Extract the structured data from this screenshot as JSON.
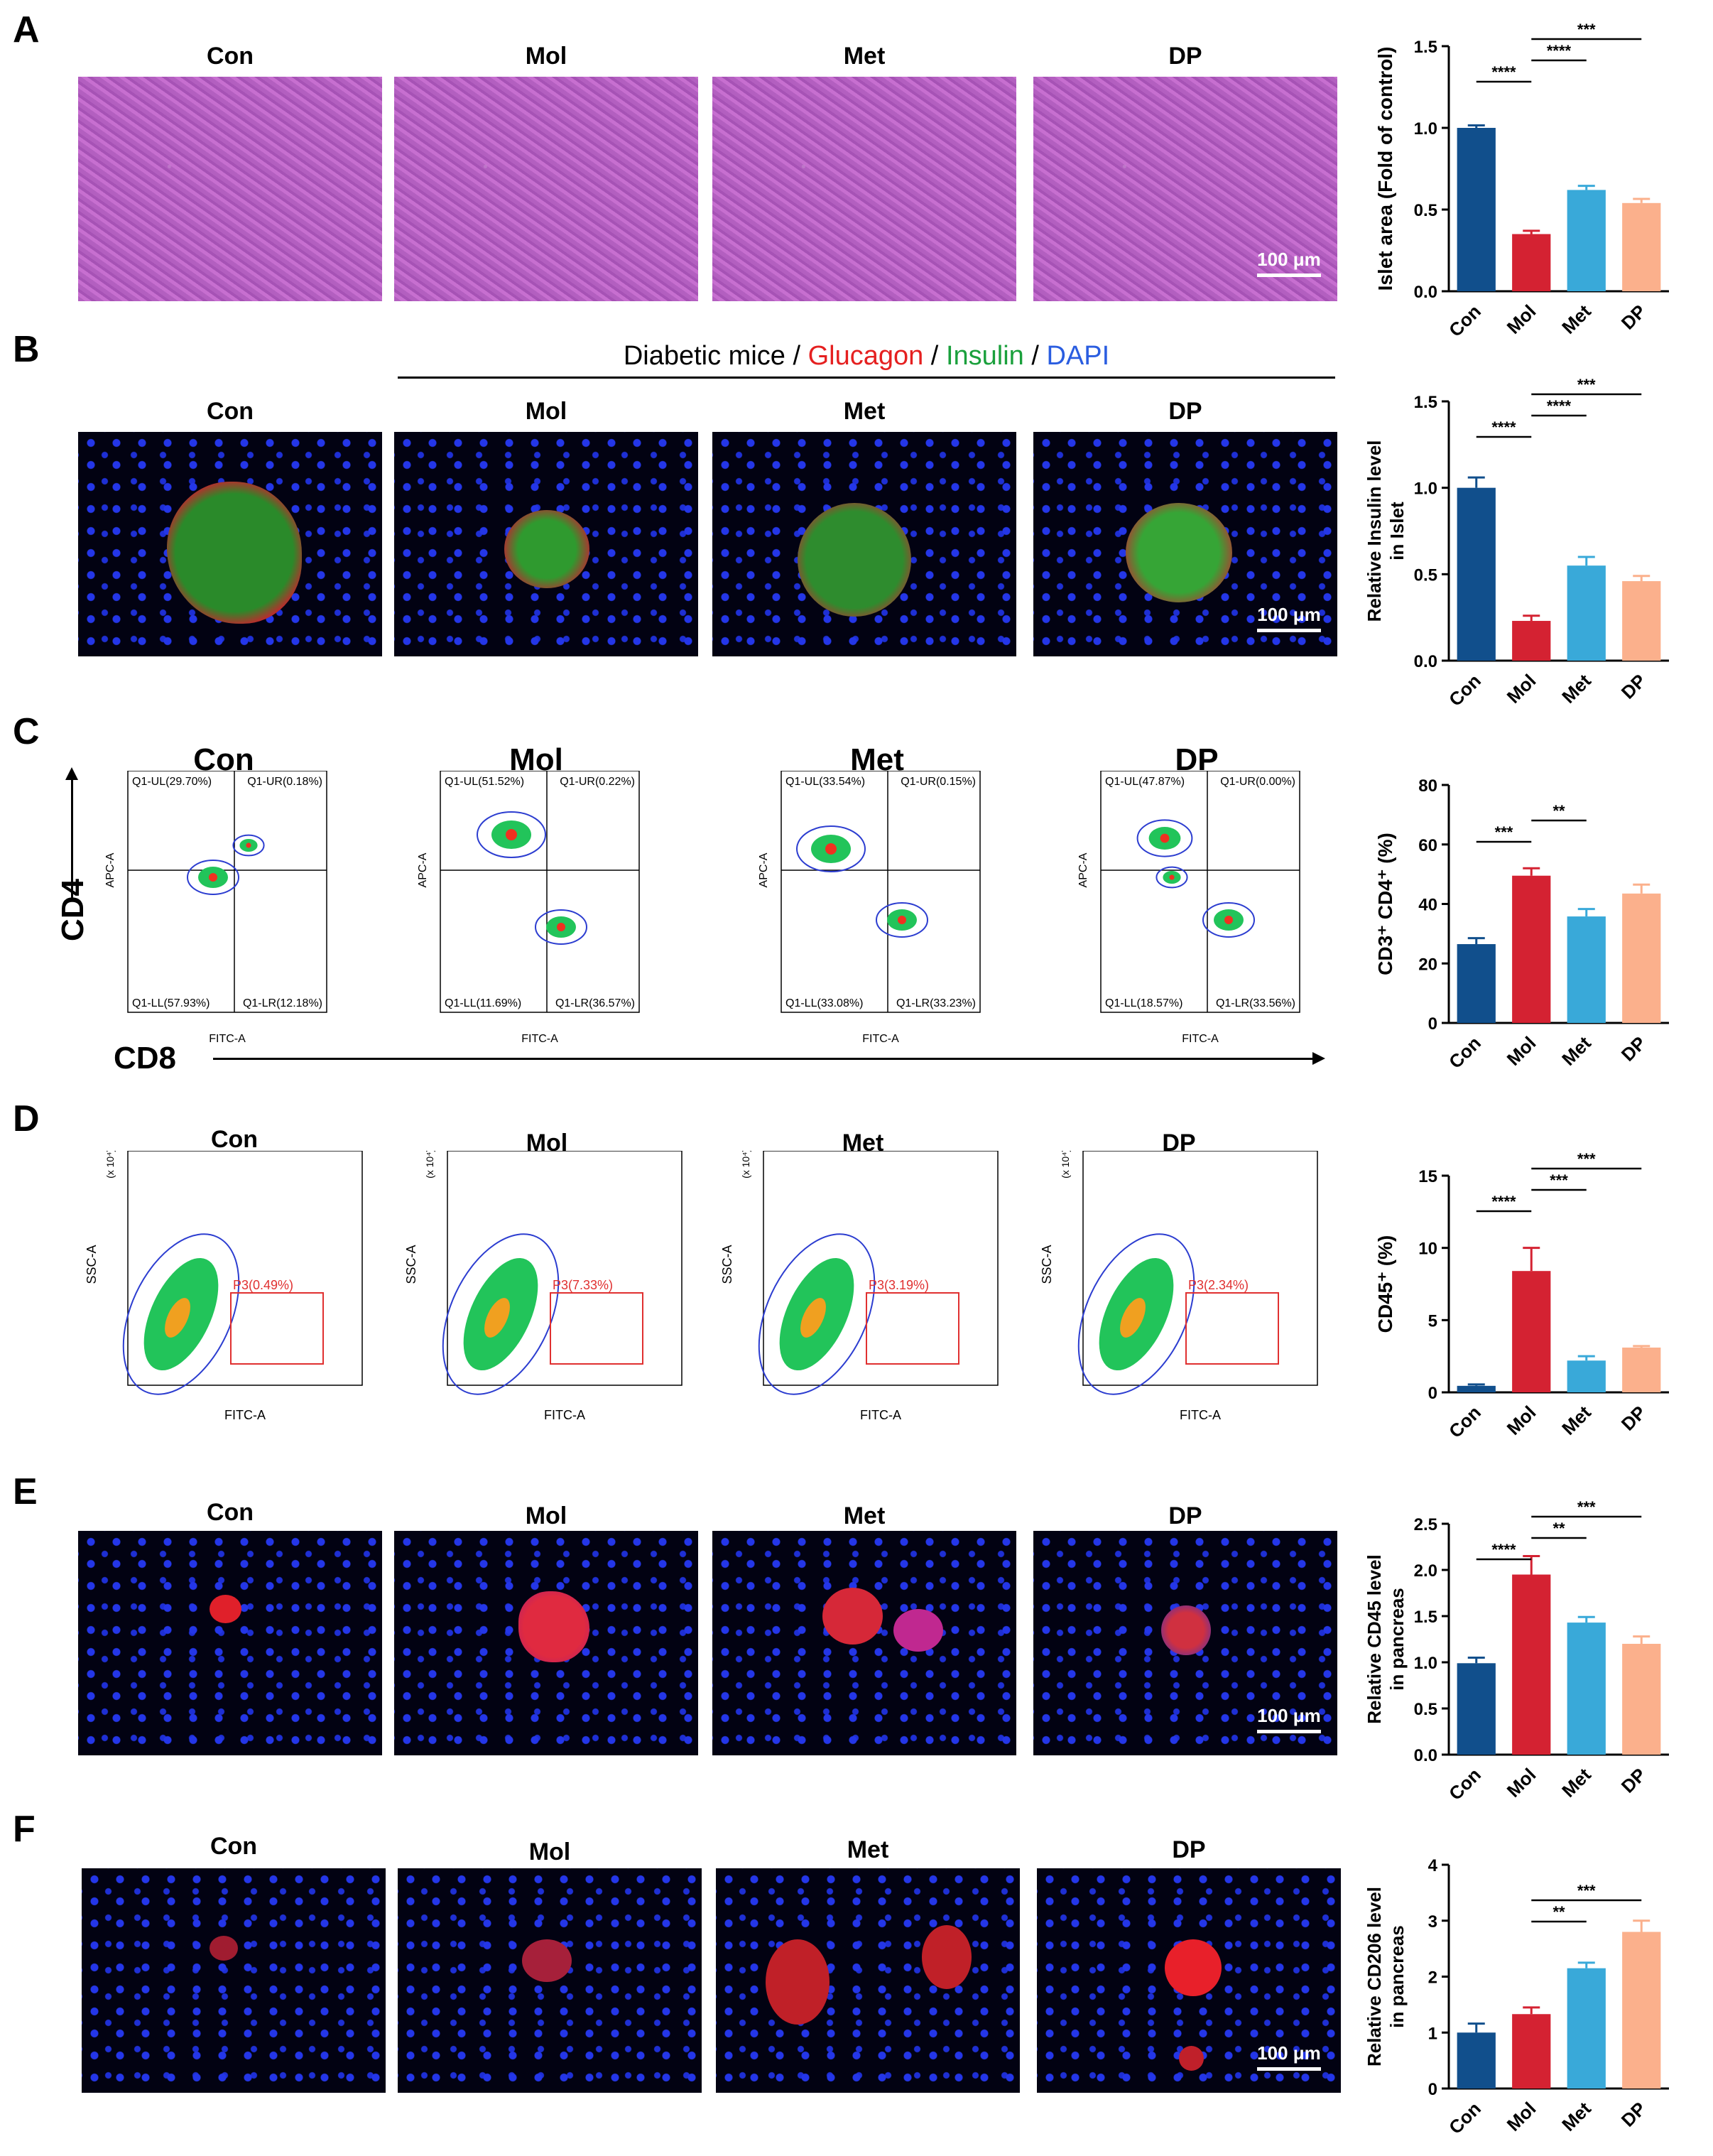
{
  "panels": [
    {
      "letter": "A",
      "groups": [
        "Con",
        "Mol",
        "Met",
        "DP"
      ],
      "scale_label": "100 μm"
    },
    {
      "letter": "B",
      "header": {
        "prefix": "Diabetic mice / ",
        "glucagon": "Glucagon",
        "sep1": " / ",
        "insulin": "Insulin",
        "sep2": " / ",
        "dapi": "DAPI"
      },
      "groups": [
        "Con",
        "Mol",
        "Met",
        "DP"
      ],
      "scale_label": "100 μm"
    },
    {
      "letter": "C",
      "groups": [
        "Con",
        "Mol",
        "Met",
        "DP"
      ],
      "y_axis": "CD4",
      "x_axis": "CD8",
      "flow": [
        {
          "ul": "Q1-UL(29.70%)",
          "ur": "Q1-UR(0.18%)",
          "ll": "Q1-LL(57.93%)",
          "lr": "Q1-LR(12.18%)"
        },
        {
          "ul": "Q1-UL(51.52%)",
          "ur": "Q1-UR(0.22%)",
          "ll": "Q1-LL(11.69%)",
          "lr": "Q1-LR(36.57%)"
        },
        {
          "ul": "Q1-UL(33.54%)",
          "ur": "Q1-UR(0.15%)",
          "ll": "Q1-LL(33.08%)",
          "lr": "Q1-LR(33.23%)"
        },
        {
          "ul": "Q1-UL(47.87%)",
          "ur": "Q1-UR(0.00%)",
          "ll": "Q1-LL(18.57%)",
          "lr": "Q1-LR(33.56%)"
        }
      ],
      "axis_x": "FITC-A",
      "axis_y": "APC-A"
    },
    {
      "letter": "D",
      "groups": [
        "Con",
        "Mol",
        "Met",
        "DP"
      ],
      "gates": [
        "P3(0.49%)",
        "P3(7.33%)",
        "P3(3.19%)",
        "P3(2.34%)"
      ],
      "axis_x": "FITC-A",
      "axis_y": "SSC-A",
      "y_mult": "(x 10⁴)"
    },
    {
      "letter": "E",
      "groups": [
        "Con",
        "Mol",
        "Met",
        "DP"
      ],
      "scale_label": "100 μm"
    },
    {
      "letter": "F",
      "groups": [
        "Con",
        "Mol",
        "Met",
        "DP"
      ],
      "scale_label": "100 μm"
    }
  ],
  "colors": {
    "Con": "#114f8c",
    "Mol": "#d42232",
    "Met": "#39a9d9",
    "DP": "#fbb08c"
  },
  "chart_data": [
    {
      "type": "bar",
      "panel": "A",
      "categories": [
        "Con",
        "Mol",
        "Met",
        "DP"
      ],
      "values": [
        1.0,
        0.35,
        0.62,
        0.54
      ],
      "errors": [
        0.015,
        0.02,
        0.025,
        0.025
      ],
      "ylabel": "Islet area (Fold of control)",
      "ylim": [
        0,
        1.5
      ],
      "yticks": [
        "0.0",
        "0.5",
        "1.0",
        "1.5"
      ],
      "sig": [
        {
          "from": 0,
          "to": 1,
          "label": "****"
        },
        {
          "from": 1,
          "to": 2,
          "label": "****"
        },
        {
          "from": 1,
          "to": 3,
          "label": "***"
        }
      ]
    },
    {
      "type": "bar",
      "panel": "B",
      "categories": [
        "Con",
        "Mol",
        "Met",
        "DP"
      ],
      "values": [
        1.0,
        0.23,
        0.55,
        0.46
      ],
      "errors": [
        0.06,
        0.03,
        0.05,
        0.03
      ],
      "ylabel": "Relative Insulin level in Islet",
      "ylim": [
        0,
        1.5
      ],
      "yticks": [
        "0.0",
        "0.5",
        "1.0",
        "1.5"
      ],
      "sig": [
        {
          "from": 0,
          "to": 1,
          "label": "****"
        },
        {
          "from": 1,
          "to": 2,
          "label": "****"
        },
        {
          "from": 1,
          "to": 3,
          "label": "***"
        }
      ]
    },
    {
      "type": "bar",
      "panel": "C",
      "categories": [
        "Con",
        "Mol",
        "Met",
        "DP"
      ],
      "values": [
        26.5,
        49.5,
        35.8,
        43.5
      ],
      "errors": [
        2.0,
        2.5,
        2.5,
        3.0
      ],
      "ylabel": "CD3⁺ CD4⁺ (%)",
      "ylim": [
        0,
        80
      ],
      "yticks": [
        "0",
        "20",
        "40",
        "60",
        "80"
      ],
      "sig": [
        {
          "from": 0,
          "to": 1,
          "label": "***"
        },
        {
          "from": 1,
          "to": 2,
          "label": "**"
        }
      ]
    },
    {
      "type": "bar",
      "panel": "D",
      "categories": [
        "Con",
        "Mol",
        "Met",
        "DP"
      ],
      "values": [
        0.45,
        8.4,
        2.2,
        3.1
      ],
      "errors": [
        0.1,
        1.6,
        0.3,
        0.1
      ],
      "ylabel": "CD45⁺ (%)",
      "ylim": [
        0,
        15
      ],
      "yticks": [
        "0",
        "5",
        "10",
        "15"
      ],
      "sig": [
        {
          "from": 0,
          "to": 1,
          "label": "****"
        },
        {
          "from": 1,
          "to": 2,
          "label": "***"
        },
        {
          "from": 1,
          "to": 3,
          "label": "***"
        }
      ]
    },
    {
      "type": "bar",
      "panel": "E",
      "categories": [
        "Con",
        "Mol",
        "Met",
        "DP"
      ],
      "values": [
        0.99,
        1.95,
        1.43,
        1.2
      ],
      "errors": [
        0.06,
        0.2,
        0.06,
        0.08
      ],
      "ylabel": "Relative CD45 level in pancreas",
      "ylim": [
        0,
        2.5
      ],
      "yticks": [
        "0.0",
        "0.5",
        "1.0",
        "1.5",
        "2.0",
        "2.5"
      ],
      "sig": [
        {
          "from": 0,
          "to": 1,
          "label": "****"
        },
        {
          "from": 1,
          "to": 2,
          "label": "**"
        },
        {
          "from": 1,
          "to": 3,
          "label": "***"
        }
      ]
    },
    {
      "type": "bar",
      "panel": "F",
      "categories": [
        "Con",
        "Mol",
        "Met",
        "DP"
      ],
      "values": [
        1.0,
        1.33,
        2.15,
        2.8
      ],
      "errors": [
        0.16,
        0.12,
        0.1,
        0.2
      ],
      "ylabel": "Relative CD206 level in pancreas",
      "ylim": [
        0,
        4
      ],
      "yticks": [
        "0",
        "1",
        "2",
        "3",
        "4"
      ],
      "sig": [
        {
          "from": 1,
          "to": 2,
          "label": "**"
        },
        {
          "from": 1,
          "to": 3,
          "label": "***"
        }
      ]
    }
  ]
}
